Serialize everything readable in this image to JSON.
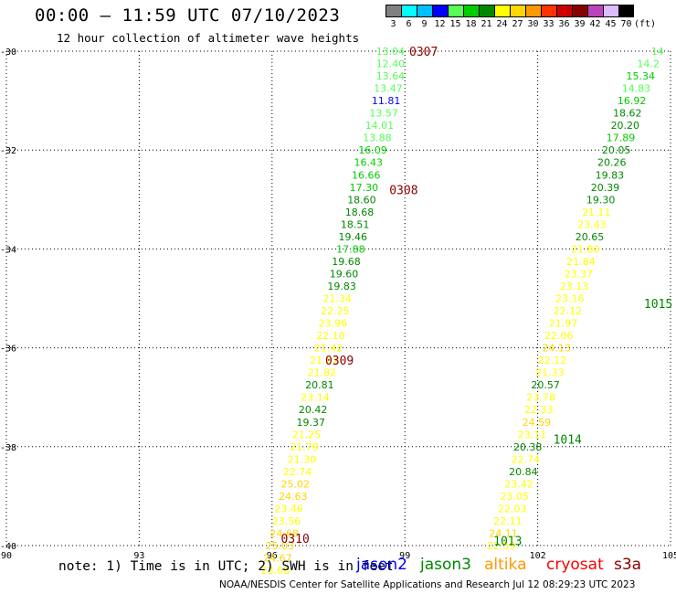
{
  "header": {
    "title": "00:00 – 11:59 UTC 07/10/2023",
    "subtitle": "12 hour collection of altimeter wave heights"
  },
  "color_scale": {
    "labels": [
      "3",
      "6",
      "9",
      "12",
      "15",
      "18",
      "21",
      "24",
      "27",
      "30",
      "33",
      "36",
      "39",
      "42",
      "45",
      "70",
      "(ft)"
    ],
    "colors": [
      "#808080",
      "#00ffff",
      "#00bfff",
      "#0000ff",
      "#55ff55",
      "#00cc00",
      "#008800",
      "#ffff00",
      "#ffd700",
      "#ff9900",
      "#ff3300",
      "#cc0000",
      "#880000",
      "#bb44bb",
      "#ddbbff",
      "#000000"
    ]
  },
  "footer": {
    "note": "note: 1) Time is in UTC; 2) SWH is in feet",
    "legend": [
      {
        "label": "jason2",
        "color": "#0000ff"
      },
      {
        "label": "jason3",
        "color": "#008800"
      },
      {
        "label": "altika",
        "color": "#ff9900"
      },
      {
        "label": "cryosat",
        "color": "#ff0000"
      },
      {
        "label": "s3a",
        "color": "#880000"
      }
    ],
    "credit": "NOAA/NESDIS Center for Satellite Applications and Research   Jul 12 08:29:23 UTC 2023"
  },
  "chart_data": {
    "type": "scatter",
    "title": "00:00 – 11:59 UTC 07/10/2023",
    "subtitle": "12 hour collection of altimeter wave heights",
    "xlim": [
      90,
      105
    ],
    "ylim": [
      -40,
      -30
    ],
    "xticks": [
      90,
      93,
      96,
      99,
      102,
      105
    ],
    "yticks": [
      -30,
      -32,
      -34,
      -36,
      -38,
      -40
    ],
    "grid": true,
    "units": "ft",
    "time_labels": [
      {
        "text": "0307",
        "x": 99.1,
        "y": -30.0,
        "color": "#880000"
      },
      {
        "text": "0308",
        "x": 98.65,
        "y": -32.8,
        "color": "#880000"
      },
      {
        "text": "0309",
        "x": 97.2,
        "y": -36.25,
        "color": "#880000"
      },
      {
        "text": "0310",
        "x": 96.2,
        "y": -39.85,
        "color": "#880000"
      },
      {
        "text": "1013",
        "x": 101.0,
        "y": -39.9,
        "color": "#008800"
      },
      {
        "text": "1014",
        "x": 102.35,
        "y": -37.85,
        "color": "#008800"
      },
      {
        "text": "1015",
        "x": 104.4,
        "y": -35.1,
        "color": "#008800"
      }
    ],
    "series": [
      {
        "name": "jason3",
        "points": [
          {
            "x": 99.0,
            "y": -30.0,
            "v": "13.04",
            "c": "#55ff55"
          },
          {
            "x": 99.0,
            "y": -30.25,
            "v": "12.40",
            "c": "#55ff55"
          },
          {
            "x": 99.0,
            "y": -30.5,
            "v": "13.64",
            "c": "#55ff55"
          },
          {
            "x": 98.95,
            "y": -30.75,
            "v": "13.47",
            "c": "#55ff55"
          },
          {
            "x": 98.9,
            "y": -31.0,
            "v": "11.81",
            "c": "#0000ff"
          },
          {
            "x": 98.85,
            "y": -31.25,
            "v": "13.57",
            "c": "#55ff55"
          },
          {
            "x": 98.75,
            "y": -31.5,
            "v": "14.01",
            "c": "#55ff55"
          },
          {
            "x": 98.7,
            "y": -31.75,
            "v": "13.88",
            "c": "#55ff55"
          },
          {
            "x": 98.6,
            "y": -32.0,
            "v": "16.09",
            "c": "#00cc00"
          },
          {
            "x": 98.5,
            "y": -32.25,
            "v": "16.43",
            "c": "#00cc00"
          },
          {
            "x": 98.45,
            "y": -32.5,
            "v": "16.66",
            "c": "#00cc00"
          },
          {
            "x": 98.4,
            "y": -32.75,
            "v": "17.30",
            "c": "#00cc00"
          },
          {
            "x": 98.35,
            "y": -33.0,
            "v": "18.60",
            "c": "#008800"
          },
          {
            "x": 98.3,
            "y": -33.25,
            "v": "18.68",
            "c": "#008800"
          },
          {
            "x": 98.2,
            "y": -33.5,
            "v": "18.51",
            "c": "#008800"
          },
          {
            "x": 98.15,
            "y": -33.75,
            "v": "19.46",
            "c": "#008800"
          },
          {
            "x": 98.1,
            "y": -34.0,
            "v": "17.88",
            "c": "#00cc00"
          },
          {
            "x": 98.0,
            "y": -34.25,
            "v": "19.68",
            "c": "#008800"
          },
          {
            "x": 97.95,
            "y": -34.5,
            "v": "19.60",
            "c": "#008800"
          },
          {
            "x": 97.9,
            "y": -34.75,
            "v": "19.83",
            "c": "#008800"
          },
          {
            "x": 97.8,
            "y": -35.0,
            "v": "21.34",
            "c": "#ffff00"
          },
          {
            "x": 97.75,
            "y": -35.25,
            "v": "22.25",
            "c": "#ffff00"
          },
          {
            "x": 97.7,
            "y": -35.5,
            "v": "23.96",
            "c": "#ffff00"
          },
          {
            "x": 97.65,
            "y": -35.75,
            "v": "22.10",
            "c": "#ffff00"
          },
          {
            "x": 97.6,
            "y": -36.0,
            "v": "21.42",
            "c": "#ffff00"
          },
          {
            "x": 97.5,
            "y": -36.25,
            "v": "21.87",
            "c": "#ffff00"
          },
          {
            "x": 97.45,
            "y": -36.5,
            "v": "21.82",
            "c": "#ffff00"
          },
          {
            "x": 97.4,
            "y": -36.75,
            "v": "20.81",
            "c": "#008800"
          },
          {
            "x": 97.3,
            "y": -37.0,
            "v": "23.14",
            "c": "#ffff00"
          },
          {
            "x": 97.25,
            "y": -37.25,
            "v": "20.42",
            "c": "#008800"
          },
          {
            "x": 97.2,
            "y": -37.5,
            "v": "19.37",
            "c": "#008800"
          },
          {
            "x": 97.1,
            "y": -37.75,
            "v": "21.25",
            "c": "#ffff00"
          },
          {
            "x": 97.05,
            "y": -38.0,
            "v": "21.79",
            "c": "#ffff00"
          },
          {
            "x": 97.0,
            "y": -38.25,
            "v": "21.30",
            "c": "#ffff00"
          },
          {
            "x": 96.9,
            "y": -38.5,
            "v": "22.74",
            "c": "#ffff00"
          },
          {
            "x": 96.85,
            "y": -38.75,
            "v": "25.02",
            "c": "#ffd700"
          },
          {
            "x": 96.8,
            "y": -39.0,
            "v": "24.63",
            "c": "#ffd700"
          },
          {
            "x": 96.7,
            "y": -39.25,
            "v": "23.46",
            "c": "#ffff00"
          },
          {
            "x": 96.65,
            "y": -39.5,
            "v": "23.56",
            "c": "#ffff00"
          },
          {
            "x": 96.6,
            "y": -39.75,
            "v": "24.68",
            "c": "#ffd700"
          },
          {
            "x": 96.5,
            "y": -40.0,
            "v": "25.03",
            "c": "#ffd700"
          },
          {
            "x": 96.45,
            "y": -40.25,
            "v": "24.67",
            "c": "#ffd700"
          },
          {
            "x": 96.4,
            "y": -40.5,
            "v": "23.68",
            "c": "#ffff00"
          },
          {
            "x": 101.5,
            "y": -40.0,
            "v": "22.59",
            "c": "#ffff00"
          },
          {
            "x": 101.55,
            "y": -39.75,
            "v": "24.11",
            "c": "#ffd700"
          },
          {
            "x": 101.65,
            "y": -39.5,
            "v": "22.11",
            "c": "#ffff00"
          },
          {
            "x": 101.75,
            "y": -39.25,
            "v": "22.03",
            "c": "#ffff00"
          },
          {
            "x": 101.8,
            "y": -39.0,
            "v": "23.05",
            "c": "#ffff00"
          },
          {
            "x": 101.9,
            "y": -38.75,
            "v": "23.42",
            "c": "#ffff00"
          },
          {
            "x": 102.0,
            "y": -38.5,
            "v": "20.84",
            "c": "#008800"
          },
          {
            "x": 102.05,
            "y": -38.25,
            "v": "22.74",
            "c": "#ffff00"
          },
          {
            "x": 102.1,
            "y": -38.0,
            "v": "20.38",
            "c": "#008800"
          },
          {
            "x": 102.2,
            "y": -37.75,
            "v": "23.11",
            "c": "#ffff00"
          },
          {
            "x": 102.3,
            "y": -37.5,
            "v": "24.59",
            "c": "#ffd700"
          },
          {
            "x": 102.35,
            "y": -37.25,
            "v": "22.33",
            "c": "#ffff00"
          },
          {
            "x": 102.4,
            "y": -37.0,
            "v": "23.78",
            "c": "#ffff00"
          },
          {
            "x": 102.5,
            "y": -36.75,
            "v": "20.57",
            "c": "#008800"
          },
          {
            "x": 102.6,
            "y": -36.5,
            "v": "21.33",
            "c": "#ffff00"
          },
          {
            "x": 102.65,
            "y": -36.25,
            "v": "22.12",
            "c": "#ffff00"
          },
          {
            "x": 102.75,
            "y": -36.0,
            "v": "24.13",
            "c": "#ffd700"
          },
          {
            "x": 102.8,
            "y": -35.75,
            "v": "22.06",
            "c": "#ffff00"
          },
          {
            "x": 102.9,
            "y": -35.5,
            "v": "21.97",
            "c": "#ffff00"
          },
          {
            "x": 103.0,
            "y": -35.25,
            "v": "22.12",
            "c": "#ffff00"
          },
          {
            "x": 103.05,
            "y": -35.0,
            "v": "23.16",
            "c": "#ffff00"
          },
          {
            "x": 103.15,
            "y": -34.75,
            "v": "23.13",
            "c": "#ffff00"
          },
          {
            "x": 103.25,
            "y": -34.5,
            "v": "23.37",
            "c": "#ffff00"
          },
          {
            "x": 103.3,
            "y": -34.25,
            "v": "21.84",
            "c": "#ffff00"
          },
          {
            "x": 103.4,
            "y": -34.0,
            "v": "21.80",
            "c": "#ffff00"
          },
          {
            "x": 103.5,
            "y": -33.75,
            "v": "20.65",
            "c": "#008800"
          },
          {
            "x": 103.55,
            "y": -33.5,
            "v": "23.43",
            "c": "#ffff00"
          },
          {
            "x": 103.65,
            "y": -33.25,
            "v": "21.11",
            "c": "#ffff00"
          },
          {
            "x": 103.75,
            "y": -33.0,
            "v": "19.30",
            "c": "#008800"
          },
          {
            "x": 103.85,
            "y": -32.75,
            "v": "20.39",
            "c": "#008800"
          },
          {
            "x": 103.95,
            "y": -32.5,
            "v": "19.83",
            "c": "#008800"
          },
          {
            "x": 104.0,
            "y": -32.25,
            "v": "20.26",
            "c": "#008800"
          },
          {
            "x": 104.1,
            "y": -32.0,
            "v": "20.05",
            "c": "#008800"
          },
          {
            "x": 104.2,
            "y": -31.75,
            "v": "17.89",
            "c": "#00cc00"
          },
          {
            "x": 104.3,
            "y": -31.5,
            "v": "20.20",
            "c": "#008800"
          },
          {
            "x": 104.35,
            "y": -31.25,
            "v": "18.62",
            "c": "#008800"
          },
          {
            "x": 104.45,
            "y": -31.0,
            "v": "16.92",
            "c": "#00cc00"
          },
          {
            "x": 104.55,
            "y": -30.75,
            "v": "14.83",
            "c": "#55ff55"
          },
          {
            "x": 104.65,
            "y": -30.5,
            "v": "15.34",
            "c": "#00cc00"
          },
          {
            "x": 104.75,
            "y": -30.25,
            "v": "14.2",
            "c": "#55ff55"
          },
          {
            "x": 104.85,
            "y": -30.0,
            "v": "14",
            "c": "#55ff55"
          }
        ]
      }
    ]
  }
}
